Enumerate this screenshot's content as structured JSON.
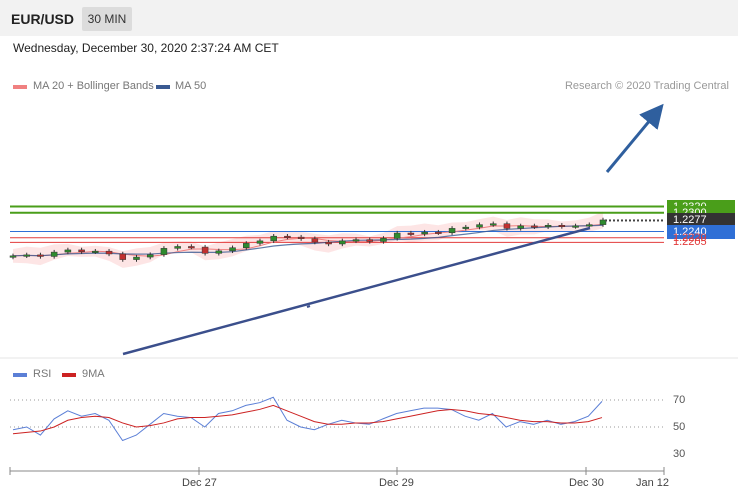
{
  "header": {
    "symbol": "EUR/USD",
    "timeframe": "30 MIN",
    "datetime": "Wednesday, December 30, 2020 2:37:24 AM CET"
  },
  "legend": {
    "ma20": "MA 20 + Bollinger Bands",
    "ma50": "MA 50",
    "copyright": "Research © 2020 Trading Central",
    "colors": {
      "ma20": "#f08080",
      "ma50": "#3a5a92"
    }
  },
  "rsi_panel": {
    "rsi_label": "RSI",
    "ma_label": "9MA",
    "ticks": [
      "70",
      "50",
      "30"
    ],
    "colors": {
      "rsi": "#5b7fd6",
      "ma": "#cc2222"
    }
  },
  "x_axis": {
    "labels": [
      "Dec 27",
      "Dec 29",
      "Dec 30",
      "Jan 12"
    ]
  },
  "chart_data": {
    "type": "line",
    "title": "EUR/USD",
    "price_levels": [
      {
        "value": "1.2320",
        "kind": "resistance",
        "color": "#4a9e1a"
      },
      {
        "value": "1.2300",
        "kind": "resistance",
        "color": "#4a9e1a"
      },
      {
        "value": "1.2277",
        "kind": "last",
        "color": "#333333"
      },
      {
        "value": "1.2240",
        "kind": "pivot",
        "color": "#2f6fd6"
      },
      {
        "value": "1.2220",
        "kind": "support",
        "color": "#e23b3b"
      },
      {
        "value": "1.2205",
        "kind": "support",
        "color": "#e23b3b"
      }
    ],
    "price_close_series": [
      1.2162,
      1.2165,
      1.216,
      1.2174,
      1.2181,
      1.2175,
      1.2177,
      1.2168,
      1.215,
      1.2158,
      1.2166,
      1.2186,
      1.2192,
      1.219,
      1.217,
      1.2178,
      1.2188,
      1.2202,
      1.221,
      1.2225,
      1.2222,
      1.2217,
      1.2206,
      1.22,
      1.221,
      1.2214,
      1.2208,
      1.2218,
      1.2235,
      1.2232,
      1.2238,
      1.2236,
      1.225,
      1.2254,
      1.2262,
      1.2265,
      1.225,
      1.2258,
      1.2255,
      1.226,
      1.2256,
      1.2258,
      1.2262,
      1.2277
    ],
    "rsi_series": [
      48,
      50,
      44,
      56,
      62,
      58,
      60,
      55,
      40,
      44,
      52,
      60,
      58,
      57,
      50,
      60,
      62,
      66,
      68,
      72,
      55,
      50,
      48,
      52,
      55,
      53,
      52,
      56,
      60,
      62,
      64,
      64,
      63,
      58,
      55,
      60,
      50,
      54,
      52,
      55,
      52,
      54,
      58,
      69
    ],
    "rsi_ma_series": [
      45,
      46,
      47,
      50,
      55,
      57,
      58,
      57,
      53,
      50,
      51,
      53,
      56,
      57,
      57,
      58,
      59,
      61,
      63,
      66,
      62,
      58,
      54,
      52,
      52,
      53,
      53,
      54,
      56,
      58,
      60,
      62,
      63,
      62,
      60,
      59,
      57,
      55,
      54,
      54,
      53,
      53,
      54,
      57
    ]
  }
}
